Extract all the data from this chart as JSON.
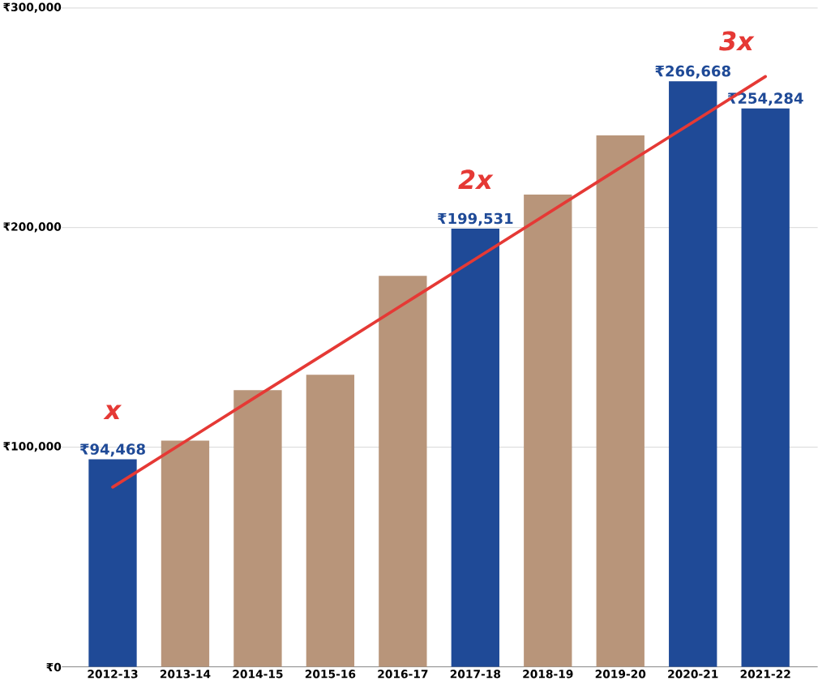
{
  "chart_data": {
    "type": "bar",
    "categories": [
      "2012-13",
      "2013-14",
      "2014-15",
      "2015-16",
      "2016-17",
      "2017-18",
      "2018-19",
      "2019-20",
      "2020-21",
      "2021-22"
    ],
    "series": [
      {
        "values": [
          94468,
          103000,
          126000,
          133000,
          178000,
          199531,
          215000,
          242000,
          266668,
          254284
        ],
        "colors": [
          "#1f4a97",
          "#b8957a",
          "#b8957a",
          "#b8957a",
          "#b8957a",
          "#1f4a97",
          "#b8957a",
          "#b8957a",
          "#1f4a97",
          "#1f4a97"
        ],
        "value_labels": [
          "₹94,468",
          null,
          null,
          null,
          null,
          "₹199,531",
          null,
          null,
          "₹266,668",
          "₹254,284"
        ]
      },
      {
        "type": "line",
        "color": "#e53935",
        "values": [
          81800,
          102600,
          123400,
          144100,
          164900,
          185700,
          206500,
          227300,
          248000,
          268800
        ]
      }
    ],
    "ylim": [
      0,
      300000
    ],
    "yticks": [
      {
        "value": 0,
        "label": "₹0"
      },
      {
        "value": 100000,
        "label": "₹100,000"
      },
      {
        "value": 200000,
        "label": "₹200,000"
      },
      {
        "value": 300000,
        "label": "₹300,000"
      }
    ],
    "grid": "y",
    "annotations": [
      "x",
      "2x",
      "3x"
    ]
  }
}
